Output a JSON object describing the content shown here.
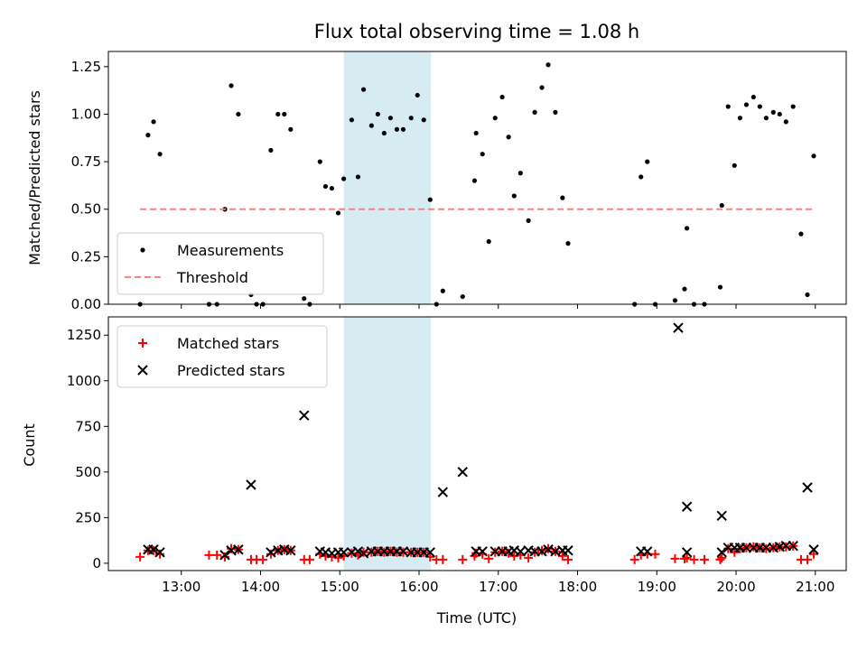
{
  "chart_data": [
    {
      "type": "scatter",
      "title": "Flux total observing time = 1.08 h",
      "xlabel": "",
      "ylabel": "Matched/Predicted stars",
      "ylim": [
        0,
        1.33
      ],
      "xlim": [
        12.08,
        21.39
      ],
      "yticks": [
        0,
        0.25,
        0.5,
        0.75,
        1.0,
        1.25
      ],
      "ytick_labels": [
        "0.00",
        "0.25",
        "0.50",
        "0.75",
        "1.00",
        "1.25"
      ],
      "highlight_span": [
        15.05,
        16.15
      ],
      "legend_position": "lower-left",
      "series": [
        {
          "name": "Measurements",
          "style": "dot",
          "color": "#000000",
          "points": [
            [
              12.48,
              0.0
            ],
            [
              12.58,
              0.89
            ],
            [
              12.65,
              0.96
            ],
            [
              12.73,
              0.79
            ],
            [
              13.35,
              0.0
            ],
            [
              13.45,
              0.0
            ],
            [
              13.55,
              0.5
            ],
            [
              13.63,
              1.15
            ],
            [
              13.72,
              1.0
            ],
            [
              13.88,
              0.05
            ],
            [
              13.95,
              0.0
            ],
            [
              14.03,
              0.0
            ],
            [
              14.13,
              0.81
            ],
            [
              14.22,
              1.0
            ],
            [
              14.3,
              1.0
            ],
            [
              14.38,
              0.92
            ],
            [
              14.55,
              0.03
            ],
            [
              14.62,
              0.0
            ],
            [
              14.75,
              0.75
            ],
            [
              14.82,
              0.62
            ],
            [
              14.9,
              0.61
            ],
            [
              14.98,
              0.48
            ],
            [
              15.05,
              0.66
            ],
            [
              15.15,
              0.97
            ],
            [
              15.23,
              0.67
            ],
            [
              15.3,
              1.13
            ],
            [
              15.4,
              0.94
            ],
            [
              15.48,
              1.0
            ],
            [
              15.56,
              0.9
            ],
            [
              15.64,
              0.98
            ],
            [
              15.72,
              0.92
            ],
            [
              15.8,
              0.92
            ],
            [
              15.9,
              0.98
            ],
            [
              15.98,
              1.1
            ],
            [
              16.06,
              0.97
            ],
            [
              16.14,
              0.55
            ],
            [
              16.22,
              0.0
            ],
            [
              16.3,
              0.07
            ],
            [
              16.55,
              0.04
            ],
            [
              16.7,
              0.65
            ],
            [
              16.72,
              0.9
            ],
            [
              16.8,
              0.79
            ],
            [
              16.88,
              0.33
            ],
            [
              16.96,
              0.98
            ],
            [
              17.05,
              1.09
            ],
            [
              17.13,
              0.88
            ],
            [
              17.2,
              0.57
            ],
            [
              17.28,
              0.69
            ],
            [
              17.38,
              0.44
            ],
            [
              17.46,
              1.01
            ],
            [
              17.55,
              1.14
            ],
            [
              17.63,
              1.26
            ],
            [
              17.72,
              1.01
            ],
            [
              17.81,
              0.56
            ],
            [
              17.88,
              0.32
            ],
            [
              18.72,
              0.0
            ],
            [
              18.8,
              0.67
            ],
            [
              18.88,
              0.75
            ],
            [
              18.98,
              0.0
            ],
            [
              19.23,
              0.02
            ],
            [
              19.35,
              0.08
            ],
            [
              19.38,
              0.4
            ],
            [
              19.47,
              0.0
            ],
            [
              19.6,
              0.0
            ],
            [
              19.8,
              0.09
            ],
            [
              19.82,
              0.52
            ],
            [
              19.9,
              1.04
            ],
            [
              19.98,
              0.73
            ],
            [
              20.05,
              0.98
            ],
            [
              20.13,
              1.05
            ],
            [
              20.22,
              1.09
            ],
            [
              20.3,
              1.04
            ],
            [
              20.38,
              0.98
            ],
            [
              20.47,
              1.01
            ],
            [
              20.55,
              1.0
            ],
            [
              20.63,
              0.96
            ],
            [
              20.72,
              1.04
            ],
            [
              20.82,
              0.37
            ],
            [
              20.9,
              0.05
            ],
            [
              20.98,
              0.78
            ]
          ]
        },
        {
          "name": "Threshold",
          "style": "dashed-line",
          "color": "#ff7f7f",
          "points": [
            [
              12.48,
              0.5
            ],
            [
              20.98,
              0.5
            ]
          ]
        }
      ]
    },
    {
      "type": "scatter",
      "title": "",
      "xlabel": "Time (UTC)",
      "ylabel": "Count",
      "ylim": [
        -40,
        1350
      ],
      "xlim": [
        12.08,
        21.39
      ],
      "yticks": [
        0,
        250,
        500,
        750,
        1000,
        1250
      ],
      "ytick_labels": [
        "0",
        "250",
        "500",
        "750",
        "1000",
        "1250"
      ],
      "xticks": [
        13,
        14,
        15,
        16,
        17,
        18,
        19,
        20,
        21
      ],
      "xtick_labels": [
        "13:00",
        "14:00",
        "15:00",
        "16:00",
        "17:00",
        "18:00",
        "19:00",
        "20:00",
        "21:00"
      ],
      "highlight_span": [
        15.05,
        16.15
      ],
      "legend_position": "top-left",
      "series": [
        {
          "name": "Matched stars",
          "marker": "+",
          "color": "#ff0000",
          "points": [
            [
              12.48,
              35
            ],
            [
              12.58,
              70
            ],
            [
              12.65,
              70
            ],
            [
              12.73,
              50
            ],
            [
              13.35,
              45
            ],
            [
              13.45,
              45
            ],
            [
              13.55,
              35
            ],
            [
              13.63,
              80
            ],
            [
              13.72,
              75
            ],
            [
              13.88,
              20
            ],
            [
              13.95,
              20
            ],
            [
              14.03,
              20
            ],
            [
              14.13,
              50
            ],
            [
              14.22,
              70
            ],
            [
              14.3,
              75
            ],
            [
              14.38,
              70
            ],
            [
              14.55,
              20
            ],
            [
              14.62,
              20
            ],
            [
              14.75,
              50
            ],
            [
              14.82,
              40
            ],
            [
              14.9,
              35
            ],
            [
              14.98,
              30
            ],
            [
              15.05,
              40
            ],
            [
              15.15,
              55
            ],
            [
              15.23,
              45
            ],
            [
              15.3,
              60
            ],
            [
              15.4,
              60
            ],
            [
              15.48,
              65
            ],
            [
              15.56,
              60
            ],
            [
              15.64,
              65
            ],
            [
              15.72,
              60
            ],
            [
              15.8,
              60
            ],
            [
              15.9,
              60
            ],
            [
              15.98,
              60
            ],
            [
              16.06,
              60
            ],
            [
              16.14,
              35
            ],
            [
              16.22,
              20
            ],
            [
              16.3,
              20
            ],
            [
              16.55,
              20
            ],
            [
              16.7,
              40
            ],
            [
              16.72,
              55
            ],
            [
              16.8,
              50
            ],
            [
              16.88,
              25
            ],
            [
              16.96,
              60
            ],
            [
              17.05,
              65
            ],
            [
              17.13,
              55
            ],
            [
              17.2,
              40
            ],
            [
              17.28,
              45
            ],
            [
              17.38,
              30
            ],
            [
              17.46,
              60
            ],
            [
              17.55,
              70
            ],
            [
              17.63,
              80
            ],
            [
              17.72,
              65
            ],
            [
              17.81,
              40
            ],
            [
              17.88,
              20
            ],
            [
              18.72,
              20
            ],
            [
              18.8,
              45
            ],
            [
              18.88,
              50
            ],
            [
              18.98,
              50
            ],
            [
              19.23,
              25
            ],
            [
              19.35,
              25
            ],
            [
              19.38,
              30
            ],
            [
              19.47,
              20
            ],
            [
              19.6,
              20
            ],
            [
              19.8,
              20
            ],
            [
              19.82,
              30
            ],
            [
              19.9,
              80
            ],
            [
              19.98,
              60
            ],
            [
              20.05,
              80
            ],
            [
              20.13,
              85
            ],
            [
              20.22,
              90
            ],
            [
              20.3,
              85
            ],
            [
              20.38,
              80
            ],
            [
              20.47,
              85
            ],
            [
              20.55,
              90
            ],
            [
              20.63,
              90
            ],
            [
              20.72,
              95
            ],
            [
              20.82,
              20
            ],
            [
              20.9,
              20
            ],
            [
              20.98,
              50
            ]
          ]
        },
        {
          "name": "Predicted stars",
          "marker": "x",
          "color": "#000000",
          "points": [
            [
              12.58,
              75
            ],
            [
              12.65,
              75
            ],
            [
              12.73,
              60
            ],
            [
              13.55,
              45
            ],
            [
              13.63,
              70
            ],
            [
              13.72,
              75
            ],
            [
              13.88,
              430
            ],
            [
              14.13,
              60
            ],
            [
              14.22,
              70
            ],
            [
              14.3,
              75
            ],
            [
              14.38,
              70
            ],
            [
              14.55,
              810
            ],
            [
              14.75,
              65
            ],
            [
              14.82,
              60
            ],
            [
              14.9,
              55
            ],
            [
              14.98,
              60
            ],
            [
              15.05,
              60
            ],
            [
              15.15,
              60
            ],
            [
              15.23,
              65
            ],
            [
              15.3,
              55
            ],
            [
              15.4,
              65
            ],
            [
              15.48,
              65
            ],
            [
              15.56,
              65
            ],
            [
              15.64,
              65
            ],
            [
              15.72,
              65
            ],
            [
              15.8,
              65
            ],
            [
              15.9,
              60
            ],
            [
              15.98,
              60
            ],
            [
              16.06,
              60
            ],
            [
              16.14,
              60
            ],
            [
              16.3,
              390
            ],
            [
              16.55,
              500
            ],
            [
              16.72,
              65
            ],
            [
              16.8,
              65
            ],
            [
              16.96,
              65
            ],
            [
              17.05,
              65
            ],
            [
              17.13,
              65
            ],
            [
              17.2,
              70
            ],
            [
              17.28,
              65
            ],
            [
              17.38,
              70
            ],
            [
              17.46,
              65
            ],
            [
              17.55,
              65
            ],
            [
              17.63,
              75
            ],
            [
              17.72,
              65
            ],
            [
              17.81,
              70
            ],
            [
              17.88,
              70
            ],
            [
              18.8,
              65
            ],
            [
              18.88,
              65
            ],
            [
              19.27,
              1290
            ],
            [
              19.38,
              310
            ],
            [
              19.38,
              60
            ],
            [
              19.82,
              260
            ],
            [
              19.82,
              60
            ],
            [
              19.9,
              85
            ],
            [
              19.98,
              85
            ],
            [
              20.05,
              85
            ],
            [
              20.13,
              85
            ],
            [
              20.22,
              85
            ],
            [
              20.3,
              85
            ],
            [
              20.38,
              85
            ],
            [
              20.47,
              85
            ],
            [
              20.55,
              90
            ],
            [
              20.63,
              95
            ],
            [
              20.72,
              95
            ],
            [
              20.9,
              415
            ],
            [
              20.98,
              75
            ]
          ]
        }
      ]
    }
  ]
}
